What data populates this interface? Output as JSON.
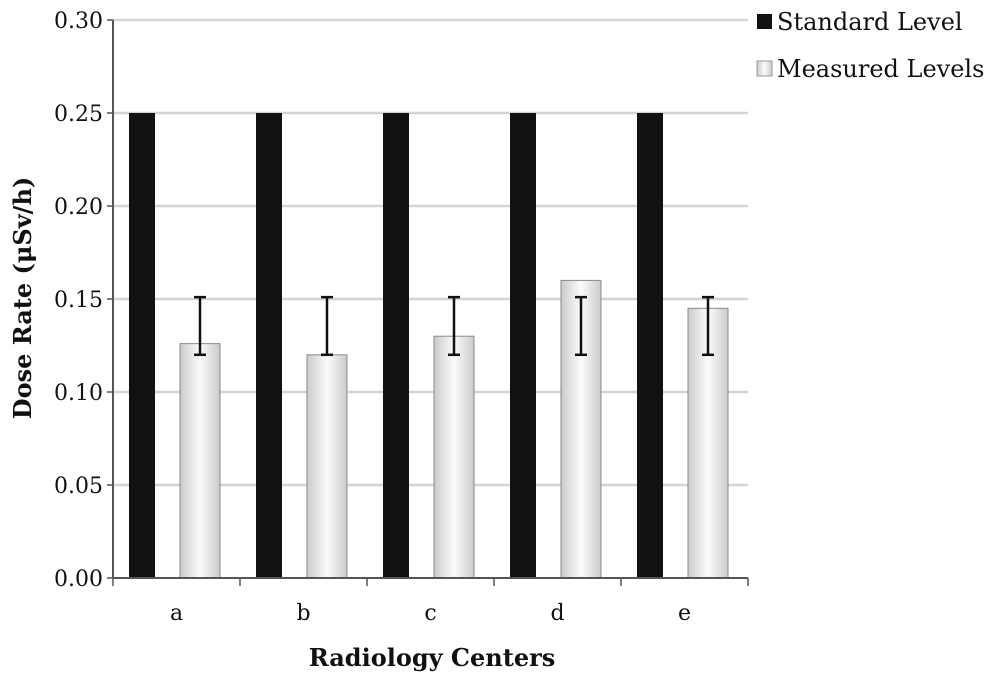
{
  "chart_data": {
    "type": "bar",
    "categories": [
      "a",
      "b",
      "c",
      "d",
      "e"
    ],
    "series": [
      {
        "name": "Standard Level",
        "values": [
          0.25,
          0.25,
          0.25,
          0.25,
          0.25
        ],
        "color": "#111111"
      },
      {
        "name": "Measured Levels",
        "values": [
          0.126,
          0.12,
          0.13,
          0.16,
          0.145
        ],
        "color": "#e9ebea",
        "error_low": [
          0.12,
          0.12,
          0.12,
          0.12,
          0.12
        ],
        "error_high": [
          0.151,
          0.151,
          0.151,
          0.151,
          0.151
        ]
      }
    ],
    "title": "",
    "xlabel": "Radiology Centers",
    "ylabel": "Dose Rate (μSv/h)",
    "ylim": [
      0,
      0.3
    ],
    "yticks": [
      "0.00",
      "0.05",
      "0.10",
      "0.15",
      "0.20",
      "0.25",
      "0.30"
    ],
    "grid": true,
    "legend_position": "top-right"
  }
}
